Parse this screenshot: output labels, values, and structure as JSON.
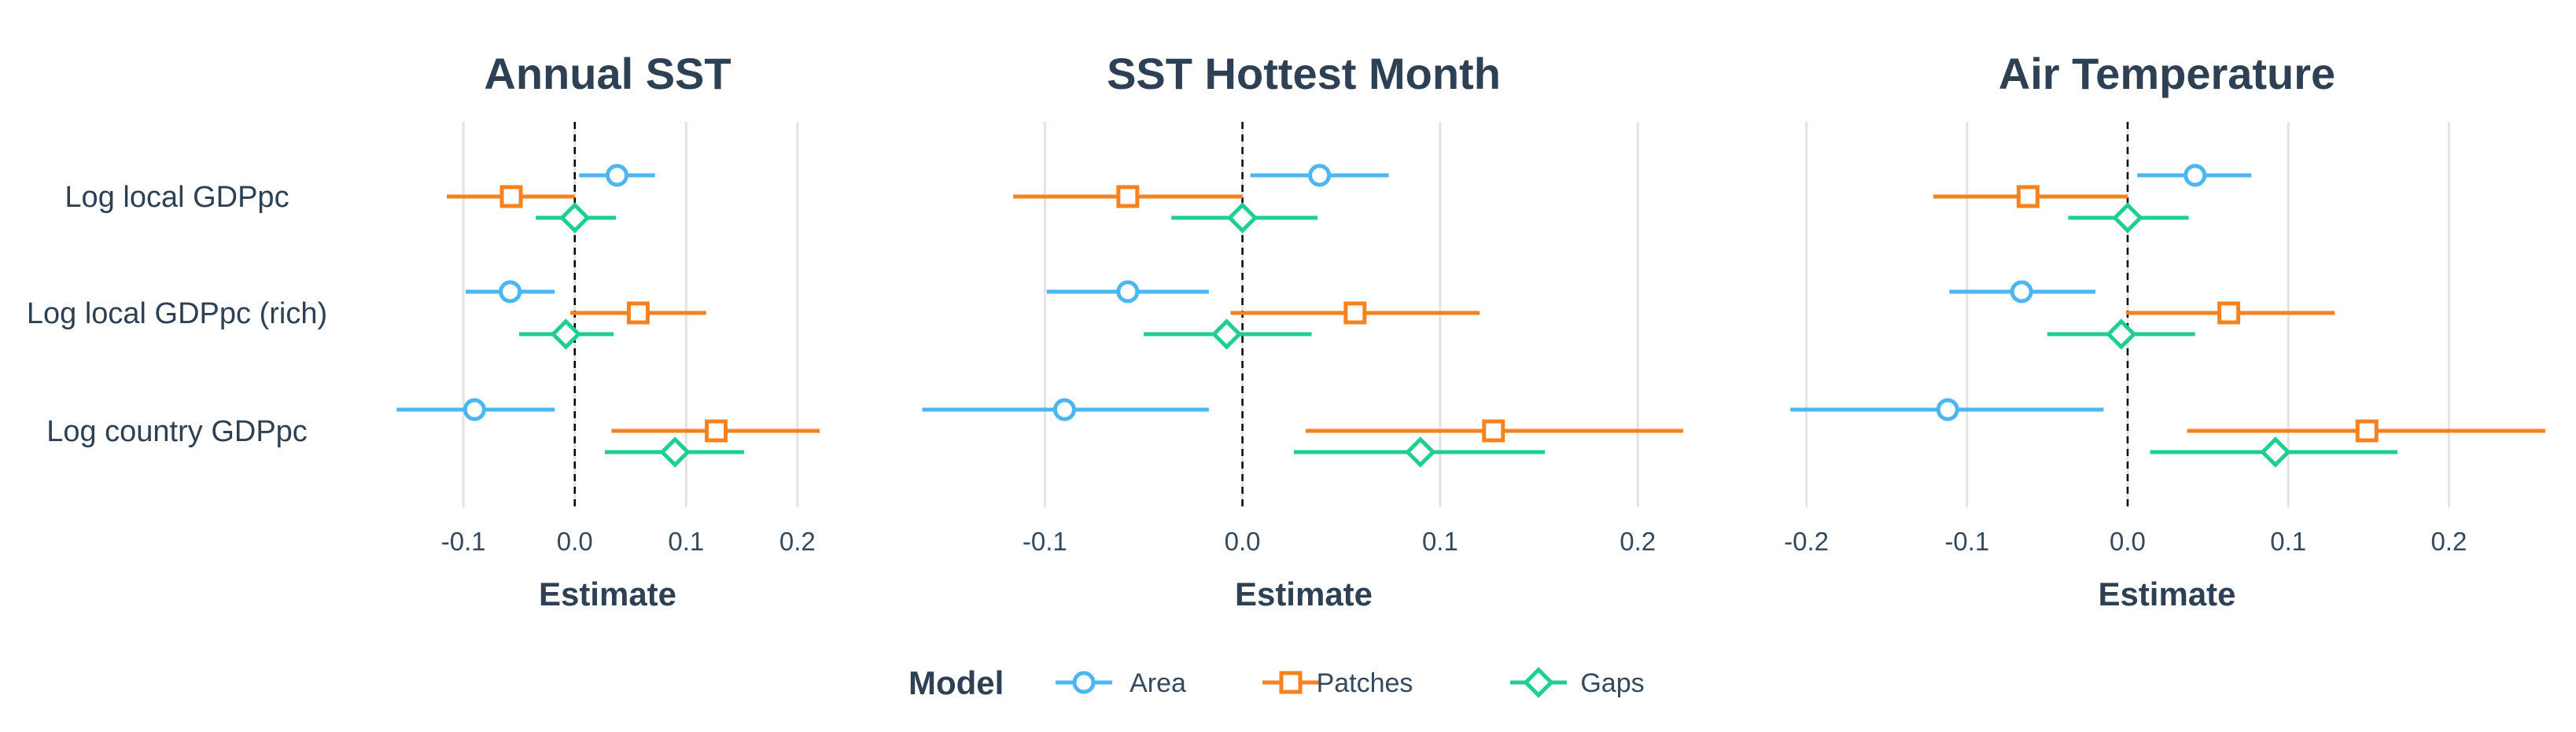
{
  "chart_data": {
    "type": "forest",
    "legend": {
      "title": "Model",
      "placement": "bottom-center",
      "entries": [
        {
          "name": "Area",
          "color": "#4bb6f0",
          "marker": "circle"
        },
        {
          "name": "Patches",
          "color": "#f5821f",
          "marker": "square"
        },
        {
          "name": "Gaps",
          "color": "#1fcf8d",
          "marker": "diamond"
        }
      ]
    },
    "rows": [
      "Log local GDPpc",
      "Log local GDPpc (rich)",
      "Log country GDPpc"
    ],
    "grid": "vertical",
    "reference_line": {
      "x": 0,
      "style": "dashed"
    },
    "panels": [
      {
        "title": "Annual SST",
        "xlabel": "Estimate",
        "xlim": [
          -0.163,
          0.222
        ],
        "ticks": [
          -0.1,
          0.0,
          0.1,
          0.2
        ],
        "tick_labels": [
          "-0.1",
          "0.0",
          "0.1",
          "0.2"
        ],
        "series": [
          {
            "name": "Area",
            "points": [
              {
                "row": "Log local GDPpc",
                "est": 0.038,
                "lo": 0.004,
                "hi": 0.072
              },
              {
                "row": "Log local GDPpc (rich)",
                "est": -0.058,
                "lo": -0.098,
                "hi": -0.018
              },
              {
                "row": "Log country GDPpc",
                "est": -0.09,
                "lo": -0.16,
                "hi": -0.018
              }
            ]
          },
          {
            "name": "Patches",
            "points": [
              {
                "row": "Log local GDPpc",
                "est": -0.057,
                "lo": -0.115,
                "hi": 0.0
              },
              {
                "row": "Log local GDPpc (rich)",
                "est": 0.057,
                "lo": -0.004,
                "hi": 0.118
              },
              {
                "row": "Log country GDPpc",
                "est": 0.127,
                "lo": 0.033,
                "hi": 0.22
              }
            ]
          },
          {
            "name": "Gaps",
            "points": [
              {
                "row": "Log local GDPpc",
                "est": 0.0,
                "lo": -0.035,
                "hi": 0.037
              },
              {
                "row": "Log local GDPpc (rich)",
                "est": -0.008,
                "lo": -0.05,
                "hi": 0.035
              },
              {
                "row": "Log country GDPpc",
                "est": 0.09,
                "lo": 0.027,
                "hi": 0.152
              }
            ]
          }
        ]
      },
      {
        "title": "SST Hottest Month",
        "xlabel": "Estimate",
        "xlim": [
          -0.163,
          0.225
        ],
        "ticks": [
          -0.1,
          0.0,
          0.1,
          0.2
        ],
        "tick_labels": [
          "-0.1",
          "0.0",
          "0.1",
          "0.2"
        ],
        "series": [
          {
            "name": "Area",
            "points": [
              {
                "row": "Log local GDPpc",
                "est": 0.039,
                "lo": 0.004,
                "hi": 0.074
              },
              {
                "row": "Log local GDPpc (rich)",
                "est": -0.058,
                "lo": -0.099,
                "hi": -0.017
              },
              {
                "row": "Log country GDPpc",
                "est": -0.09,
                "lo": -0.162,
                "hi": -0.017
              }
            ]
          },
          {
            "name": "Patches",
            "points": [
              {
                "row": "Log local GDPpc",
                "est": -0.058,
                "lo": -0.116,
                "hi": 0.0
              },
              {
                "row": "Log local GDPpc (rich)",
                "est": 0.057,
                "lo": -0.006,
                "hi": 0.12
              },
              {
                "row": "Log country GDPpc",
                "est": 0.127,
                "lo": 0.032,
                "hi": 0.223
              }
            ]
          },
          {
            "name": "Gaps",
            "points": [
              {
                "row": "Log local GDPpc",
                "est": 0.0,
                "lo": -0.036,
                "hi": 0.038
              },
              {
                "row": "Log local GDPpc (rich)",
                "est": -0.008,
                "lo": -0.05,
                "hi": 0.035
              },
              {
                "row": "Log country GDPpc",
                "est": 0.09,
                "lo": 0.026,
                "hi": 0.153
              }
            ]
          }
        ]
      },
      {
        "title": "Air Temperature",
        "xlabel": "Estimate",
        "xlim": [
          -0.213,
          0.262
        ],
        "ticks": [
          -0.2,
          -0.1,
          0.0,
          0.1,
          0.2
        ],
        "tick_labels": [
          "-0.2",
          "-0.1",
          "0.0",
          "0.1",
          "0.2"
        ],
        "series": [
          {
            "name": "Area",
            "points": [
              {
                "row": "Log local GDPpc",
                "est": 0.042,
                "lo": 0.006,
                "hi": 0.077
              },
              {
                "row": "Log local GDPpc (rich)",
                "est": -0.066,
                "lo": -0.111,
                "hi": -0.02
              },
              {
                "row": "Log country GDPpc",
                "est": -0.112,
                "lo": -0.21,
                "hi": -0.015
              }
            ]
          },
          {
            "name": "Patches",
            "points": [
              {
                "row": "Log local GDPpc",
                "est": -0.062,
                "lo": -0.121,
                "hi": 0.0
              },
              {
                "row": "Log local GDPpc (rich)",
                "est": 0.063,
                "lo": -0.001,
                "hi": 0.129
              },
              {
                "row": "Log country GDPpc",
                "est": 0.149,
                "lo": 0.037,
                "hi": 0.26
              }
            ]
          },
          {
            "name": "Gaps",
            "points": [
              {
                "row": "Log local GDPpc",
                "est": 0.0,
                "lo": -0.037,
                "hi": 0.038
              },
              {
                "row": "Log local GDPpc (rich)",
                "est": -0.004,
                "lo": -0.05,
                "hi": 0.042
              },
              {
                "row": "Log country GDPpc",
                "est": 0.092,
                "lo": 0.014,
                "hi": 0.168
              }
            ]
          }
        ]
      }
    ]
  }
}
